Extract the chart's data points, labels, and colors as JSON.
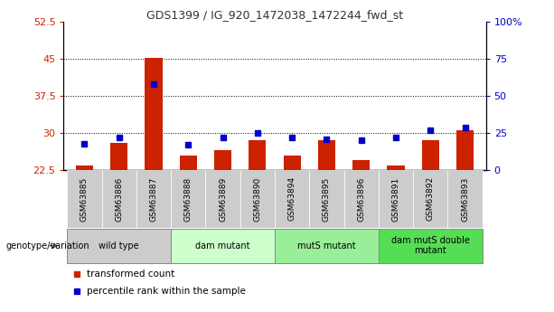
{
  "title": "GDS1399 / IG_920_1472038_1472244_fwd_st",
  "samples": [
    "GSM63885",
    "GSM63886",
    "GSM63887",
    "GSM63888",
    "GSM63889",
    "GSM63890",
    "GSM63894",
    "GSM63895",
    "GSM63896",
    "GSM63891",
    "GSM63892",
    "GSM63893"
  ],
  "transformed_count": [
    23.5,
    28.0,
    45.2,
    25.5,
    26.5,
    28.5,
    25.5,
    28.5,
    24.5,
    23.5,
    28.5,
    30.5
  ],
  "percentile_rank": [
    18,
    22,
    58,
    17,
    22,
    25,
    22,
    21,
    20,
    22,
    27,
    29
  ],
  "bar_bottom": 22.5,
  "ylim_left": [
    22.5,
    52.5
  ],
  "ylim_right": [
    0,
    100
  ],
  "yticks_left": [
    22.5,
    30.0,
    37.5,
    45.0,
    52.5
  ],
  "yticks_right": [
    0,
    25,
    50,
    75,
    100
  ],
  "ytick_labels_left": [
    "22.5",
    "30",
    "37.5",
    "45",
    "52.5"
  ],
  "ytick_labels_right": [
    "0",
    "25",
    "50",
    "75",
    "100%"
  ],
  "bar_color": "#cc2200",
  "dot_color": "#0000cc",
  "tick_color_left": "#cc2200",
  "tick_color_right": "#0000cc",
  "groups": [
    {
      "label": "wild type",
      "start": 0,
      "end": 3,
      "color": "#cccccc"
    },
    {
      "label": "dam mutant",
      "start": 3,
      "end": 6,
      "color": "#ccffcc"
    },
    {
      "label": "mutS mutant",
      "start": 6,
      "end": 9,
      "color": "#99ee99"
    },
    {
      "label": "dam mutS double\nmutant",
      "start": 9,
      "end": 12,
      "color": "#55dd55"
    }
  ],
  "legend_red_label": "transformed count",
  "legend_blue_label": "percentile rank within the sample",
  "genotype_label": "genotype/variation",
  "xtick_bg": "#cccccc",
  "group_border_color": "#888888",
  "dot_size": 4
}
